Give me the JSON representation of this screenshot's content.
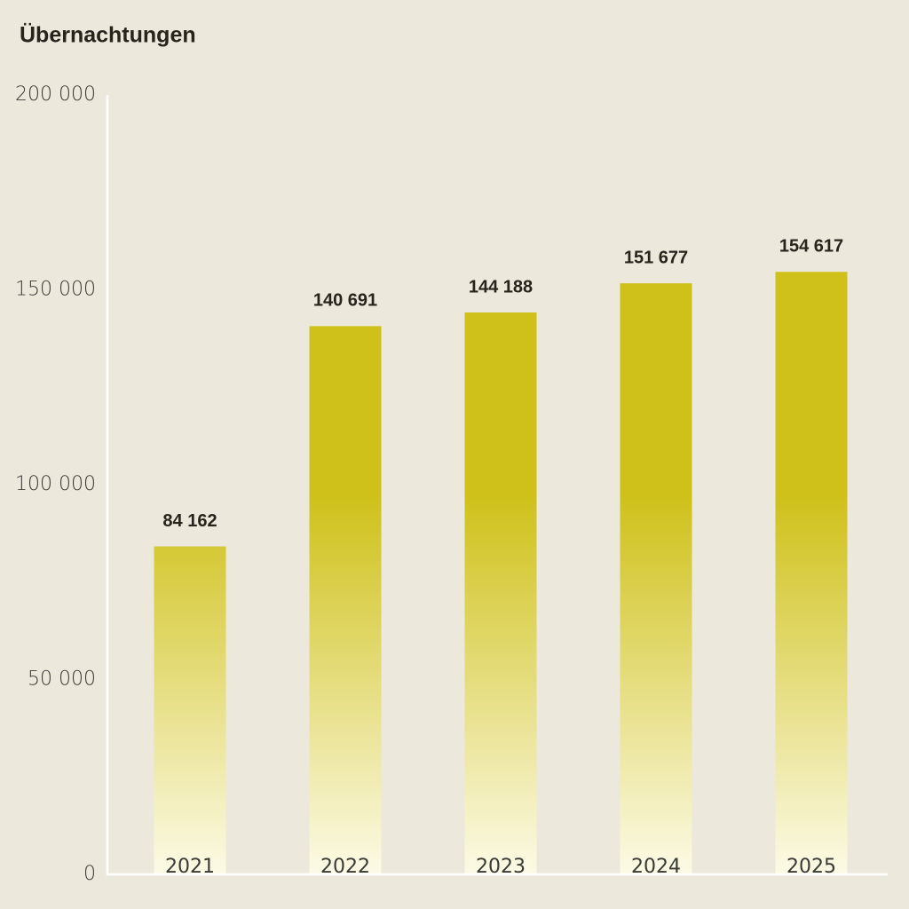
{
  "chart_data": {
    "type": "bar",
    "title": "Übernachtungen",
    "categories": [
      "2021",
      "2022",
      "2023",
      "2024",
      "2025"
    ],
    "values": [
      84162,
      140691,
      144188,
      151677,
      154617
    ],
    "value_labels": [
      "84 162",
      "140 691",
      "144 188",
      "151 677",
      "154 617"
    ],
    "color": "#cfc11a",
    "ylim": [
      0,
      200000
    ],
    "yticks": [
      0,
      {
        "value": 50000,
        "label": "50 000"
      },
      {
        "value": 100000,
        "label": "100 000"
      },
      {
        "value": 150000,
        "label": "150 000"
      },
      {
        "value": 200000,
        "label": "200 000"
      }
    ],
    "grid": false
  }
}
